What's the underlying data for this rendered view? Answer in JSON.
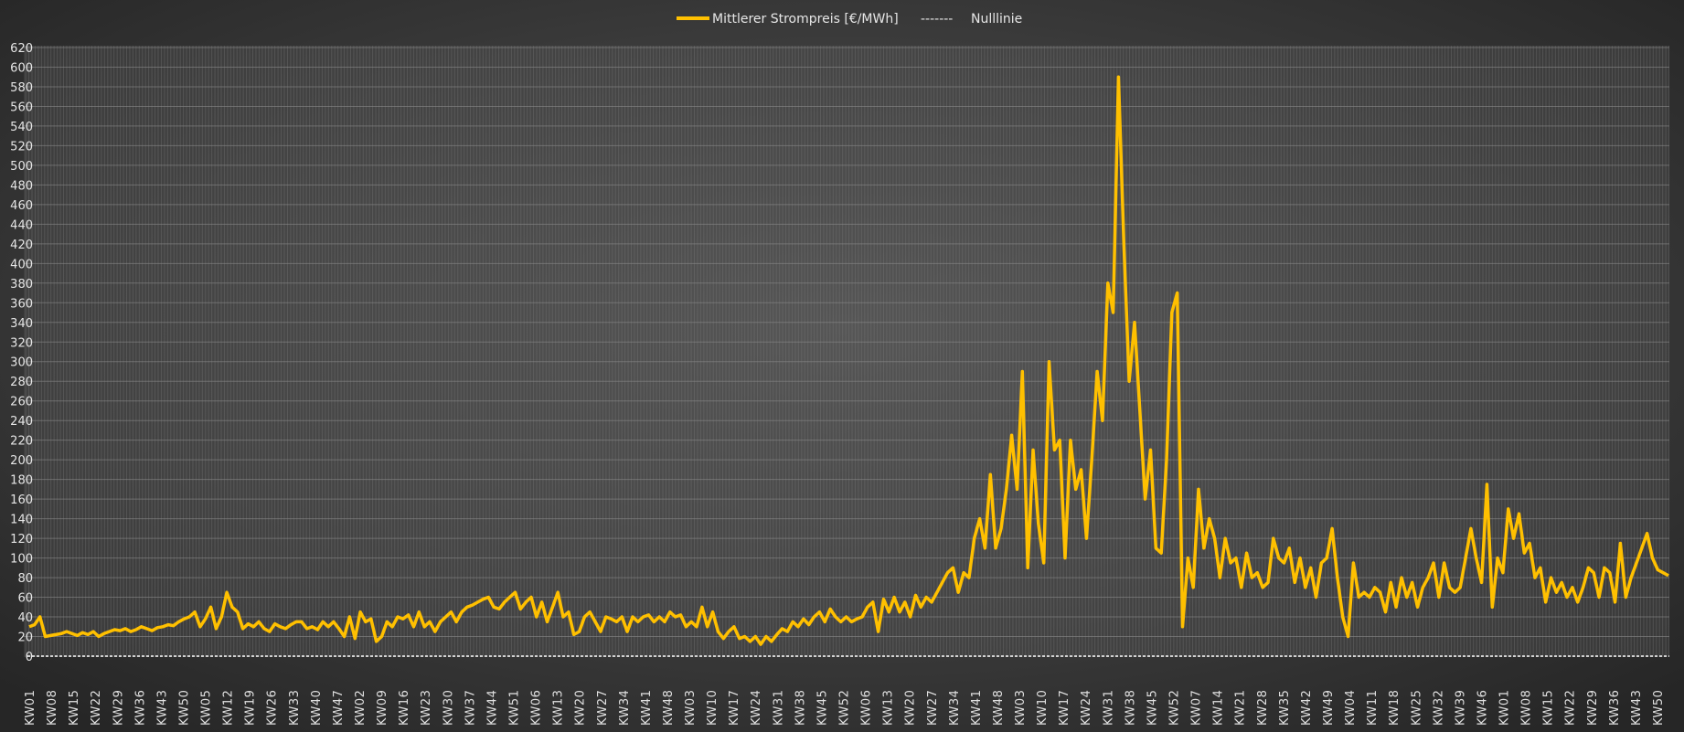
{
  "chart_data": {
    "type": "line",
    "title": "",
    "xlabel": "",
    "ylabel": "",
    "ylim": [
      0,
      620
    ],
    "yticks": [
      0,
      20,
      40,
      60,
      80,
      100,
      120,
      140,
      160,
      180,
      200,
      220,
      240,
      260,
      280,
      300,
      320,
      340,
      360,
      380,
      400,
      420,
      440,
      460,
      480,
      500,
      520,
      540,
      560,
      580,
      600,
      620
    ],
    "grid": true,
    "legend_position": "top-center",
    "x_tick_labels": [
      "KW01",
      "KW08",
      "KW15",
      "KW22",
      "KW29",
      "KW36",
      "KW43",
      "KW50",
      "KW05",
      "KW12",
      "KW19",
      "KW26",
      "KW33",
      "KW40",
      "KW47",
      "KW02",
      "KW09",
      "KW16",
      "KW23",
      "KW30",
      "KW37",
      "KW44",
      "KW51",
      "KW06",
      "KW13",
      "KW20",
      "KW27",
      "KW34",
      "KW41",
      "KW48",
      "KW03",
      "KW10",
      "KW17",
      "KW24",
      "KW31",
      "KW38",
      "KW45",
      "KW52",
      "KW06",
      "KW13",
      "KW20",
      "KW27",
      "KW34",
      "KW41",
      "KW48",
      "KW03",
      "KW10",
      "KW17",
      "KW24",
      "KW31",
      "KW38",
      "KW45",
      "KW52",
      "KW07",
      "KW14",
      "KW21",
      "KW28",
      "KW35",
      "KW42",
      "KW49",
      "KW04",
      "KW11",
      "KW18",
      "KW25",
      "KW32",
      "KW39",
      "KW46",
      "KW01",
      "KW08",
      "KW15",
      "KW22",
      "KW29",
      "KW36",
      "KW43",
      "KW50"
    ],
    "series": [
      {
        "name": "Mittlerer Strompreis [€/MWh]",
        "color": "#FFC000",
        "style": "solid",
        "values": [
          30,
          32,
          40,
          20,
          21,
          22,
          23,
          25,
          23,
          21,
          24,
          22,
          25,
          20,
          23,
          25,
          27,
          26,
          28,
          25,
          27,
          30,
          28,
          26,
          29,
          30,
          32,
          31,
          35,
          38,
          40,
          45,
          30,
          38,
          50,
          28,
          40,
          65,
          50,
          45,
          28,
          33,
          30,
          35,
          28,
          25,
          33,
          30,
          28,
          32,
          35,
          35,
          28,
          30,
          27,
          35,
          30,
          35,
          28,
          20,
          40,
          18,
          45,
          35,
          38,
          15,
          20,
          35,
          30,
          40,
          38,
          42,
          30,
          45,
          30,
          35,
          25,
          35,
          40,
          45,
          35,
          45,
          50,
          52,
          55,
          58,
          60,
          50,
          48,
          55,
          60,
          65,
          48,
          55,
          60,
          40,
          55,
          35,
          50,
          65,
          40,
          45,
          22,
          25,
          40,
          45,
          35,
          25,
          40,
          38,
          35,
          40,
          25,
          40,
          35,
          40,
          42,
          35,
          40,
          35,
          45,
          40,
          42,
          30,
          35,
          30,
          50,
          30,
          45,
          25,
          18,
          25,
          30,
          18,
          20,
          15,
          20,
          12,
          20,
          15,
          22,
          28,
          25,
          35,
          30,
          38,
          32,
          40,
          45,
          35,
          48,
          40,
          35,
          40,
          35,
          38,
          40,
          50,
          55,
          25,
          58,
          45,
          60,
          45,
          55,
          40,
          62,
          50,
          60,
          55,
          65,
          75,
          85,
          90,
          65,
          85,
          80,
          120,
          140,
          110,
          185,
          110,
          130,
          170,
          225,
          170,
          290,
          90,
          210,
          135,
          95,
          300,
          210,
          220,
          100,
          220,
          170,
          190,
          120,
          200,
          290,
          240,
          380,
          350,
          590,
          420,
          280,
          340,
          250,
          160,
          210,
          110,
          105,
          200,
          350,
          370,
          30,
          100,
          70,
          170,
          110,
          140,
          120,
          80,
          120,
          95,
          100,
          70,
          105,
          80,
          85,
          70,
          75,
          120,
          100,
          95,
          110,
          75,
          100,
          70,
          90,
          60,
          95,
          100,
          130,
          80,
          40,
          20,
          95,
          60,
          65,
          60,
          70,
          65,
          45,
          75,
          50,
          80,
          60,
          75,
          50,
          70,
          80,
          95,
          60,
          95,
          70,
          65,
          70,
          100,
          130,
          100,
          75,
          175,
          50,
          100,
          85,
          150,
          120,
          145,
          105,
          115,
          80,
          90,
          55,
          80,
          65,
          75,
          60,
          70,
          55,
          70,
          90,
          85,
          60,
          90,
          85,
          55,
          115,
          60,
          80,
          95,
          110,
          125,
          100,
          88,
          85,
          82
        ]
      },
      {
        "name": "Nulllinie",
        "color": "#FFFFFF",
        "style": "dashed",
        "values": [
          0
        ]
      }
    ],
    "legend": [
      {
        "label": "Mittlerer Strompreis [€/MWh]",
        "marker": "solid-line"
      },
      {
        "label": "Nulllinie",
        "marker": "-------"
      }
    ]
  }
}
